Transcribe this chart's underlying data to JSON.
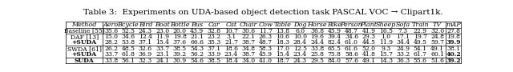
{
  "title": "Table 3:  Experiments on UDA-based object detection task PASCAL VOC → Clipart1k.",
  "columns": [
    "Method",
    "Aero",
    "Bcycle",
    "Bird",
    "Boat",
    "Bottle",
    "Bus",
    "Car",
    "Cat",
    "Chair",
    "Cow",
    "Table",
    "Dog",
    "Horse",
    "Bike",
    "Person",
    "Plant",
    "Sheep",
    "Sofa",
    "Train",
    "TV",
    "mAP"
  ],
  "rows": [
    {
      "method": "Baseline [55]",
      "bold_method": false,
      "values": [
        "35.6",
        "52.5",
        "24.3",
        "23.0",
        "20.0",
        "43.9",
        "32.8",
        "10.7",
        "30.6",
        "11.7",
        "13.8",
        "6.0",
        "36.8",
        "45.9",
        "48.7",
        "41.9",
        "16.5",
        "7.3",
        "22.9",
        "32.0",
        "27.8"
      ],
      "bold_map": false,
      "separator_after": true
    },
    {
      "method": "DAF [13]",
      "bold_method": false,
      "values": [
        "15.0",
        "34.6",
        "12.4",
        "11.9",
        "19.8",
        "21.1",
        "23.2",
        "3.1",
        "22.1",
        "26.3",
        "10.6",
        "10.0",
        "19.6",
        "39.4",
        "34.6",
        "29.3",
        "1.0",
        "17.1",
        "19.7",
        "24.8",
        "19.8"
      ],
      "bold_map": false,
      "separator_after": false
    },
    {
      "method": "+SUDA",
      "bold_method": true,
      "values": [
        "28.2",
        "53.8",
        "37.1",
        "15.4",
        "37.6",
        "66.6",
        "35.3",
        "21.7",
        "38.7",
        "48.7",
        "18.3",
        "28.4",
        "24.4",
        "82.4",
        "61.0",
        "44.5",
        "11.9",
        "34.4",
        "49.5",
        "59.7",
        "39.9"
      ],
      "bold_map": true,
      "separator_after": true
    },
    {
      "method": "SWDA [61]",
      "bold_method": false,
      "values": [
        "26.2",
        "48.5",
        "32.6",
        "33.7",
        "38.5",
        "54.3",
        "37.1",
        "18.6",
        "34.8",
        "58.3",
        "17.0",
        "12.5",
        "33.8",
        "65.5",
        "61.6",
        "52.0",
        "9.3",
        "24.9",
        "54.1",
        "49.1",
        "38.1"
      ],
      "bold_map": false,
      "separator_after": false
    },
    {
      "method": "+SUDA",
      "bold_method": true,
      "values": [
        "33.7",
        "61.8",
        "36.9",
        "23.1",
        "39.2",
        "56.2",
        "33.9",
        "23.4",
        "38.7",
        "45.9",
        "15.4",
        "23.4",
        "25.8",
        "75.8",
        "58.6",
        "41.8",
        "15.7",
        "33.2",
        "61.7",
        "60.1",
        "40.2"
      ],
      "bold_map": true,
      "separator_after": true
    },
    {
      "method": "SUDA",
      "bold_method": true,
      "values": [
        "33.8",
        "56.1",
        "32.3",
        "24.1",
        "30.9",
        "54.6",
        "38.5",
        "18.4",
        "34.0",
        "41.0",
        "18.7",
        "24.3",
        "29.5",
        "84.0",
        "57.6",
        "49.1",
        "14.3",
        "36.3",
        "55.6",
        "51.6",
        "39.2"
      ],
      "bold_map": true,
      "separator_after": false
    }
  ],
  "bg_color": "#ffffff",
  "title_fontsize": 7.5,
  "cell_fontsize": 5.5,
  "header_fontsize": 5.8
}
